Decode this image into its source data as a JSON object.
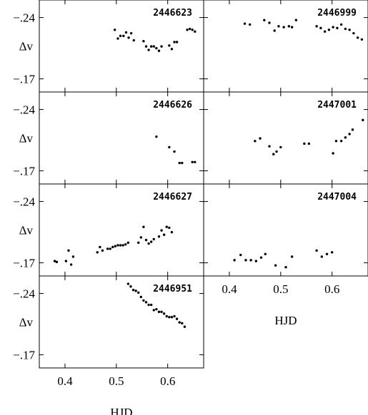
{
  "chart_data": [
    {
      "type": "scatter",
      "panel_label": "2446623",
      "ylabel": "Δv",
      "ylim": [
        -0.26,
        -0.155
      ],
      "yticks": [
        "-.24",
        "-.17"
      ],
      "xlim": [
        0.35,
        0.67
      ],
      "x": [
        0.497,
        0.503,
        0.508,
        0.514,
        0.519,
        0.524,
        0.529,
        0.534,
        0.553,
        0.558,
        0.563,
        0.568,
        0.573,
        0.578,
        0.583,
        0.588,
        0.603,
        0.608,
        0.613,
        0.618,
        0.638,
        0.643,
        0.648,
        0.653
      ],
      "y": [
        -0.226,
        -0.216,
        -0.219,
        -0.219,
        -0.223,
        -0.217,
        -0.222,
        -0.214,
        -0.213,
        -0.207,
        -0.203,
        -0.207,
        -0.207,
        -0.205,
        -0.202,
        -0.207,
        -0.208,
        -0.204,
        -0.212,
        -0.212,
        -0.226,
        -0.227,
        -0.226,
        -0.224
      ]
    },
    {
      "type": "scatter",
      "panel_label": "2446999",
      "ylabel": "",
      "ylim": [
        -0.26,
        -0.155
      ],
      "xlim": [
        0.35,
        0.67
      ],
      "x": [
        0.43,
        0.44,
        0.468,
        0.478,
        0.488,
        0.496,
        0.506,
        0.516,
        0.522,
        0.53,
        0.57,
        0.578,
        0.586,
        0.594,
        0.602,
        0.61,
        0.618,
        0.626,
        0.634,
        0.642,
        0.65,
        0.658
      ],
      "y": [
        -0.233,
        -0.232,
        -0.237,
        -0.234,
        -0.225,
        -0.23,
        -0.229,
        -0.23,
        -0.229,
        -0.237,
        -0.23,
        -0.228,
        -0.224,
        -0.226,
        -0.229,
        -0.228,
        -0.232,
        -0.227,
        -0.226,
        -0.222,
        -0.217,
        -0.215
      ]
    },
    {
      "type": "scatter",
      "panel_label": "2446626",
      "ylabel": "Δv",
      "ylim": [
        -0.26,
        -0.155
      ],
      "yticks": [
        "-.24",
        "-.17"
      ],
      "xlim": [
        0.35,
        0.67
      ],
      "x": [
        0.578,
        0.603,
        0.613,
        0.623,
        0.628,
        0.648,
        0.653
      ],
      "y": [
        -0.209,
        -0.197,
        -0.192,
        -0.179,
        -0.179,
        -0.18,
        -0.18
      ]
    },
    {
      "type": "scatter",
      "panel_label": "2447001",
      "ylabel": "",
      "ylim": [
        -0.26,
        -0.155
      ],
      "xlim": [
        0.35,
        0.67
      ],
      "x": [
        0.45,
        0.46,
        0.478,
        0.486,
        0.492,
        0.5,
        0.546,
        0.555,
        0.602,
        0.608,
        0.618,
        0.626,
        0.634,
        0.64,
        0.66
      ],
      "y": [
        -0.204,
        -0.207,
        -0.198,
        -0.189,
        -0.192,
        -0.197,
        -0.201,
        -0.201,
        -0.19,
        -0.204,
        -0.204,
        -0.208,
        -0.212,
        -0.217,
        -0.228
      ]
    },
    {
      "type": "scatter",
      "panel_label": "2446627",
      "ylabel": "Δv",
      "ylim": [
        -0.26,
        -0.155
      ],
      "yticks": [
        "-.24",
        "-.17"
      ],
      "xlim": [
        0.35,
        0.67
      ],
      "x": [
        0.38,
        0.384,
        0.402,
        0.407,
        0.412,
        0.416,
        0.463,
        0.468,
        0.473,
        0.483,
        0.488,
        0.493,
        0.498,
        0.503,
        0.508,
        0.513,
        0.518,
        0.523,
        0.543,
        0.548,
        0.553,
        0.558,
        0.563,
        0.568,
        0.573,
        0.583,
        0.588,
        0.593,
        0.598,
        0.603,
        0.608
      ],
      "y": [
        -0.172,
        -0.171,
        -0.172,
        -0.184,
        -0.168,
        -0.177,
        -0.182,
        -0.188,
        -0.184,
        -0.186,
        -0.186,
        -0.188,
        -0.189,
        -0.19,
        -0.19,
        -0.19,
        -0.191,
        -0.193,
        -0.193,
        -0.199,
        -0.211,
        -0.196,
        -0.192,
        -0.194,
        -0.197,
        -0.2,
        -0.207,
        -0.202,
        -0.211,
        -0.21,
        -0.205
      ]
    },
    {
      "type": "scatter",
      "panel_label": "2447004",
      "ylabel": "",
      "ylim": [
        -0.26,
        -0.155
      ],
      "xlim": [
        0.35,
        0.67
      ],
      "xticks": [
        "0.4",
        "0.5",
        "0.6"
      ],
      "xlabel": "HJD",
      "x": [
        0.41,
        0.422,
        0.432,
        0.442,
        0.452,
        0.462,
        0.47,
        0.49,
        0.51,
        0.522,
        0.57,
        0.58,
        0.59,
        0.6
      ],
      "y": [
        -0.173,
        -0.179,
        -0.173,
        -0.173,
        -0.172,
        -0.176,
        -0.18,
        -0.167,
        -0.165,
        -0.177,
        -0.184,
        -0.177,
        -0.18,
        -0.182
      ]
    },
    {
      "type": "scatter",
      "panel_label": "2446951",
      "ylabel": "Δv",
      "ylim": [
        -0.26,
        -0.155
      ],
      "yticks": [
        "-.24",
        "-.17"
      ],
      "xlim": [
        0.35,
        0.67
      ],
      "xticks": [
        "0.4",
        "0.5",
        "0.6"
      ],
      "xlabel": "HJD",
      "x": [
        0.523,
        0.528,
        0.533,
        0.538,
        0.543,
        0.548,
        0.553,
        0.558,
        0.563,
        0.568,
        0.573,
        0.578,
        0.583,
        0.588,
        0.593,
        0.598,
        0.603,
        0.608,
        0.613,
        0.618,
        0.623,
        0.628,
        0.633
      ],
      "y": [
        -0.251,
        -0.248,
        -0.244,
        -0.243,
        -0.241,
        -0.236,
        -0.232,
        -0.23,
        -0.227,
        -0.227,
        -0.221,
        -0.222,
        -0.219,
        -0.219,
        -0.217,
        -0.214,
        -0.213,
        -0.213,
        -0.214,
        -0.211,
        -0.207,
        -0.206,
        -0.202
      ]
    }
  ]
}
